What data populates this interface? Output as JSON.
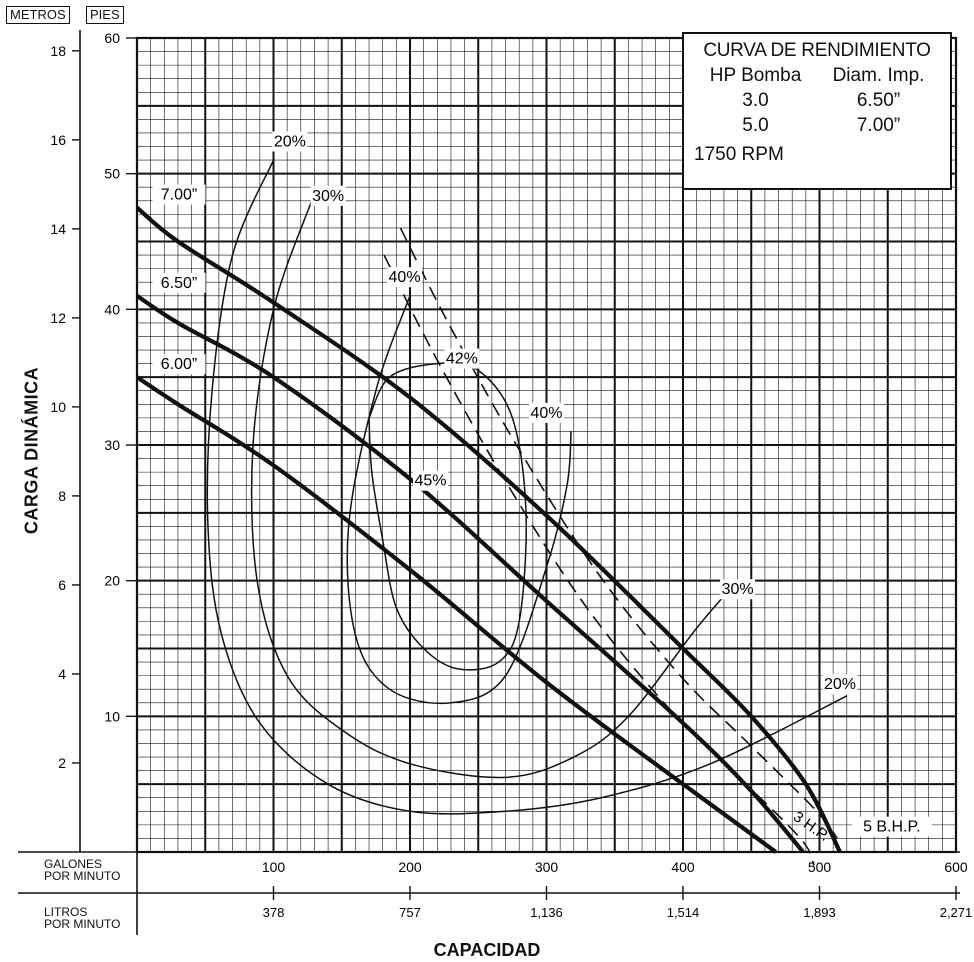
{
  "units": {
    "meters": "METROS",
    "feet": "PIES"
  },
  "legend": {
    "title": "CURVA DE RENDIMIENTO",
    "col_hp": "HP Bomba",
    "col_diam": "Diam. Imp.",
    "rows": [
      {
        "hp": "3.0",
        "diam": "6.50”"
      },
      {
        "hp": "5.0",
        "diam": "7.00”"
      }
    ],
    "rpm": "1750 RPM"
  },
  "axes": {
    "y_title": "CARGA DINÁMICA",
    "x_title": "CAPACIDAD",
    "gpm_label_1": "GALONES",
    "gpm_label_2": "POR MINUTO",
    "lpm_label_1": "LITROS",
    "lpm_label_2": "POR MINUTO"
  },
  "chart_data": {
    "type": "line",
    "title": "CURVA DE RENDIMIENTO",
    "xlabel": "CAPACIDAD",
    "ylabel": "CARGA DINÁMICA",
    "x_unit": "GALONES POR MINUTO",
    "y_unit": "PIES",
    "xlim": [
      0,
      600
    ],
    "ylim": [
      0,
      60
    ],
    "grid": true,
    "x_ticks": [
      100,
      200,
      300,
      400,
      500,
      600
    ],
    "x_tick_labels": [
      "100",
      "200",
      "300",
      "400",
      "500",
      "600"
    ],
    "x2_tick_labels": [
      "378",
      "757",
      "1,136",
      "1,514",
      "1,893",
      "2,271"
    ],
    "y_ticks_feet": [
      10,
      20,
      30,
      40,
      50,
      60
    ],
    "y_ticks_meters": [
      2,
      4,
      6,
      8,
      10,
      12,
      14,
      16,
      18
    ],
    "head_curves": [
      {
        "label": "7.00”",
        "points": [
          [
            0,
            47.5
          ],
          [
            30,
            45
          ],
          [
            100,
            40.5
          ],
          [
            200,
            33.5
          ],
          [
            300,
            24.8
          ],
          [
            400,
            15
          ],
          [
            450,
            10
          ],
          [
            490,
            5
          ],
          [
            515,
            0
          ]
        ]
      },
      {
        "label": "6.50”",
        "points": [
          [
            0,
            41
          ],
          [
            30,
            39
          ],
          [
            100,
            35
          ],
          [
            200,
            27.5
          ],
          [
            300,
            18.5
          ],
          [
            400,
            9.5
          ],
          [
            450,
            4.5
          ],
          [
            488,
            0
          ]
        ]
      },
      {
        "label": "6.00”",
        "points": [
          [
            0,
            35
          ],
          [
            30,
            33
          ],
          [
            100,
            28.5
          ],
          [
            200,
            20.8
          ],
          [
            300,
            12.5
          ],
          [
            400,
            5
          ],
          [
            468,
            0
          ]
        ]
      }
    ],
    "efficiency_curves": [
      {
        "label": "20%",
        "label_at": [
          112,
          52
        ],
        "points": [
          [
            100,
            51
          ],
          [
            70,
            44
          ],
          [
            55,
            34
          ],
          [
            52,
            24
          ],
          [
            62,
            16
          ],
          [
            90,
            9.5
          ],
          [
            140,
            5
          ],
          [
            200,
            3
          ],
          [
            270,
            3
          ],
          [
            340,
            4
          ],
          [
            420,
            6.5
          ],
          [
            520,
            11.5
          ]
        ]
      },
      {
        "label": "20%",
        "label_at": [
          515,
          12
        ],
        "points": []
      },
      {
        "label": "30%",
        "label_at": [
          140,
          48
        ],
        "points": [
          [
            128,
            48
          ],
          [
            100,
            40
          ],
          [
            85,
            30
          ],
          [
            88,
            20
          ],
          [
            110,
            13
          ],
          [
            150,
            9
          ],
          [
            200,
            6.5
          ],
          [
            270,
            5.5
          ],
          [
            320,
            7
          ],
          [
            360,
            10
          ],
          [
            410,
            16.5
          ],
          [
            440,
            20
          ]
        ]
      },
      {
        "label": "30%",
        "label_at": [
          440,
          19
        ],
        "points": []
      },
      {
        "label": "40%",
        "label_at": [
          196,
          42
        ],
        "points": [
          [
            200,
            41
          ],
          [
            175,
            34
          ],
          [
            155,
            24
          ],
          [
            160,
            16
          ],
          [
            185,
            12
          ],
          [
            230,
            11
          ],
          [
            270,
            13
          ],
          [
            300,
            21
          ],
          [
            315,
            27
          ],
          [
            318,
            31
          ]
        ]
      },
      {
        "label": "40%",
        "label_at": [
          300,
          32
        ],
        "points": []
      },
      {
        "label": "42%",
        "label_at": [
          238,
          36
        ],
        "points": [
          [
            170,
            32
          ],
          [
            185,
            35
          ],
          [
            220,
            36
          ],
          [
            250,
            35.5
          ],
          [
            275,
            32
          ],
          [
            285,
            25
          ],
          [
            280,
            17
          ],
          [
            265,
            14
          ],
          [
            235,
            13.5
          ],
          [
            210,
            15
          ],
          [
            190,
            18
          ],
          [
            180,
            23
          ],
          [
            172,
            28
          ],
          [
            170,
            32
          ]
        ]
      },
      {
        "label": "45%",
        "label_at": [
          215,
          27
        ],
        "points": []
      }
    ],
    "bhp_curves": [
      {
        "label": "3 H.P.",
        "points": [
          [
            185,
            45
          ],
          [
            220,
            38
          ],
          [
            270,
            29
          ],
          [
            330,
            19.5
          ],
          [
            390,
            12
          ],
          [
            440,
            7
          ],
          [
            490,
            2
          ],
          [
            500,
            0
          ]
        ]
      },
      {
        "label": "5 B.H.P.",
        "points": [
          [
            185,
            45
          ],
          [
            220,
            38
          ],
          [
            270,
            29
          ],
          [
            330,
            19.5
          ],
          [
            390,
            12
          ],
          [
            440,
            7
          ],
          [
            490,
            2
          ],
          [
            505,
            0
          ]
        ]
      }
    ]
  }
}
